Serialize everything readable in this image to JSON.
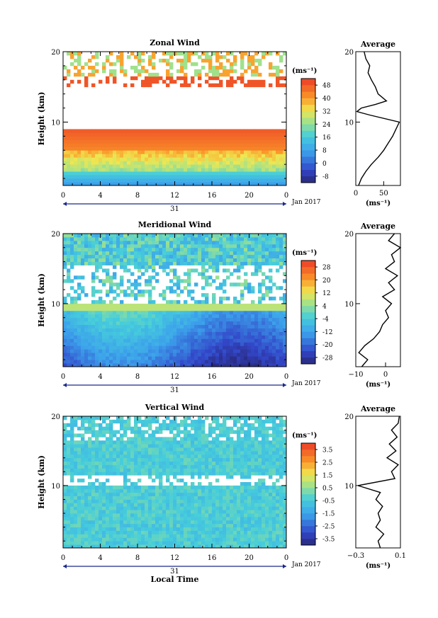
{
  "x_ticks": [
    "0",
    "4",
    "8",
    "12",
    "16",
    "20",
    "0"
  ],
  "day_label": "31",
  "month_label": "Jan 2017",
  "y_label": "Height (km)",
  "y_ticks": [
    "10",
    "20"
  ],
  "unit_label": "(ms⁻¹)",
  "average_title": "Average",
  "xlabel_bottom": "Local Time",
  "chart_data": [
    {
      "type": "heatmap",
      "title": "Zonal Wind",
      "xlabel": "",
      "ylabel": "Height (km)",
      "xlim": [
        0,
        24
      ],
      "ylim": [
        1,
        20
      ],
      "colorbar_label": "(ms⁻¹)",
      "colorbar_ticks": [
        48,
        40,
        32,
        24,
        16,
        8,
        0,
        -8
      ],
      "colorbar_range": [
        -12,
        52
      ],
      "average_profile": {
        "title": "Average",
        "xlabel": "(ms⁻¹)",
        "x_ticks": [
          "0",
          "50"
        ],
        "xlim": [
          0,
          80
        ],
        "height": [
          1,
          2,
          3,
          4,
          5,
          6,
          7,
          8,
          9,
          10,
          11,
          11.5,
          12,
          12.5,
          13,
          14,
          15,
          16,
          17,
          18,
          19,
          20
        ],
        "values": [
          5,
          10,
          18,
          28,
          40,
          50,
          58,
          66,
          72,
          78,
          25,
          2,
          10,
          35,
          55,
          40,
          35,
          28,
          22,
          25,
          18,
          15
        ]
      }
    },
    {
      "type": "heatmap",
      "title": "Meridional Wind",
      "xlabel": "",
      "ylabel": "Height (km)",
      "xlim": [
        0,
        24
      ],
      "ylim": [
        1,
        20
      ],
      "colorbar_label": "(ms⁻¹)",
      "colorbar_ticks": [
        28,
        20,
        12,
        4,
        -4,
        -12,
        -20,
        -28
      ],
      "colorbar_range": [
        -32,
        32
      ],
      "average_profile": {
        "title": "Average",
        "xlabel": "(ms⁻¹)",
        "x_ticks": [
          "−10",
          "0"
        ],
        "xlim": [
          -10,
          5
        ],
        "height": [
          1,
          2,
          3,
          4,
          5,
          6,
          7,
          8,
          9,
          10,
          11,
          12,
          13,
          14,
          15,
          16,
          17,
          18,
          19,
          20
        ],
        "values": [
          -8,
          -6,
          -9,
          -7,
          -4,
          -2,
          -1,
          1,
          0,
          2,
          -1,
          3,
          1,
          4,
          0,
          3,
          2,
          5,
          1,
          3
        ]
      }
    },
    {
      "type": "heatmap",
      "title": "Vertical Wind",
      "xlabel": "Local Time",
      "ylabel": "Height (km)",
      "xlim": [
        0,
        24
      ],
      "ylim": [
        1,
        20
      ],
      "colorbar_label": "(ms⁻¹)",
      "colorbar_ticks": [
        3.5,
        2.5,
        1.5,
        0.5,
        -0.5,
        -1.5,
        -2.5,
        -3.5
      ],
      "colorbar_range": [
        -4,
        4
      ],
      "average_profile": {
        "title": "Average",
        "xlabel": "(ms⁻¹)",
        "x_ticks": [
          "−0.3",
          "0.1"
        ],
        "xlim": [
          -0.3,
          0.1
        ],
        "height": [
          1,
          2,
          3,
          4,
          5,
          6,
          7,
          8,
          9,
          10,
          11,
          12,
          13,
          14,
          15,
          16,
          17,
          18,
          19,
          20
        ],
        "values": [
          -0.08,
          -0.1,
          -0.05,
          -0.12,
          -0.08,
          -0.1,
          -0.06,
          -0.12,
          -0.08,
          -0.28,
          0.05,
          0.02,
          0.08,
          -0.02,
          0.06,
          0.0,
          0.07,
          0.02,
          0.08,
          0.09
        ]
      }
    }
  ]
}
